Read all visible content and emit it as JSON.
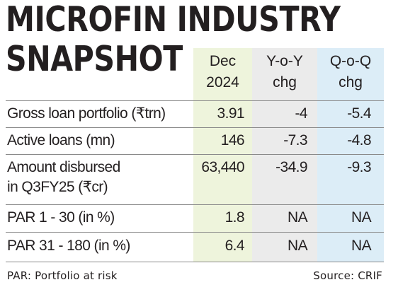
{
  "title": {
    "line1": "MICROFIN INDUSTRY",
    "line2": "SNAPSHOT"
  },
  "columns": [
    {
      "line1": "Dec",
      "line2": "2024",
      "color": "#eef4dc"
    },
    {
      "line1": "Y-o-Y",
      "line2": "chg",
      "color": "#ebebeb"
    },
    {
      "line1": "Q-o-Q",
      "line2": "chg",
      "color": "#dcedf7"
    }
  ],
  "rows": [
    {
      "label": "Gross loan portfolio (₹trn)",
      "label2": "",
      "dec2024": "3.91",
      "yoy": "-4",
      "qoq": "-5.4"
    },
    {
      "label": "Active loans (mn)",
      "label2": "",
      "dec2024": "146",
      "yoy": "-7.3",
      "qoq": "-4.8"
    },
    {
      "label": "Amount disbursed",
      "label2": "in Q3FY25 (₹cr)",
      "dec2024": "63,440",
      "yoy": "-34.9",
      "qoq": "-9.3"
    },
    {
      "label": "PAR 1 - 30 (in %)",
      "label2": "",
      "dec2024": "1.8",
      "yoy": "NA",
      "qoq": "NA"
    },
    {
      "label": "PAR 31 - 180 (in %)",
      "label2": "",
      "dec2024": "6.4",
      "yoy": "NA",
      "qoq": "NA"
    }
  ],
  "footer": {
    "note": "PAR: Portfolio at risk",
    "source": "Source: CRIF"
  }
}
